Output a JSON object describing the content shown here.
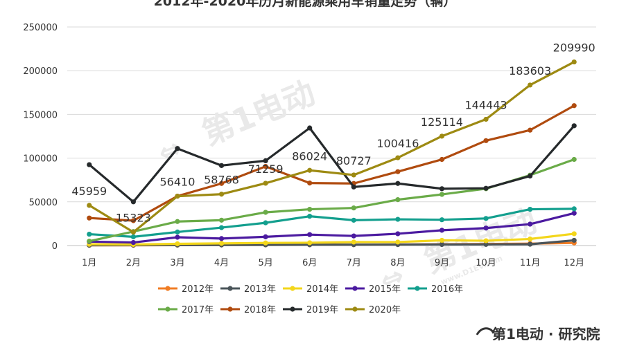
{
  "chart_data": {
    "type": "line",
    "title": "2012年-2020年历月新能源乘用车销量走势（辆）",
    "categories": [
      "1月",
      "2月",
      "3月",
      "4月",
      "5月",
      "6月",
      "7月",
      "8月",
      "9月",
      "10月",
      "11月",
      "12月"
    ],
    "ylim": [
      0,
      250000
    ],
    "yticks": [
      "0",
      "50000",
      "100000",
      "150000",
      "200000",
      "250000"
    ],
    "grid": true,
    "legend_position": "bottom",
    "series": [
      {
        "name": "2012年",
        "color": "#f07c24",
        "values": [
          300,
          300,
          500,
          700,
          800,
          900,
          1000,
          1200,
          1500,
          1800,
          2200,
          3000
        ]
      },
      {
        "name": "2013年",
        "color": "#4a5459",
        "values": [
          400,
          500,
          600,
          700,
          800,
          900,
          1000,
          1100,
          1200,
          1300,
          1500,
          6000
        ]
      },
      {
        "name": "2014年",
        "color": "#f3d61b",
        "values": [
          1500,
          1200,
          2000,
          2500,
          3000,
          3200,
          4000,
          4000,
          6000,
          5500,
          7500,
          13500
        ]
      },
      {
        "name": "2015年",
        "color": "#4b1aa0",
        "values": [
          4500,
          3500,
          9500,
          8000,
          10000,
          12500,
          11000,
          13500,
          17500,
          20000,
          24500,
          37000
        ]
      },
      {
        "name": "2016年",
        "color": "#139f8e",
        "values": [
          13000,
          10000,
          15500,
          20500,
          26000,
          33500,
          29000,
          30000,
          29500,
          31000,
          41500,
          42000
        ]
      },
      {
        "name": "2017年",
        "color": "#6aab48",
        "values": [
          5000,
          16000,
          27500,
          29000,
          38000,
          41500,
          43000,
          52500,
          58500,
          65000,
          80500,
          98500
        ]
      },
      {
        "name": "2018年",
        "color": "#b04b0f",
        "values": [
          31500,
          28500,
          56500,
          71000,
          90500,
          71500,
          71000,
          84500,
          98500,
          120000,
          132000,
          160000
        ]
      },
      {
        "name": "2019年",
        "color": "#25292b",
        "values": [
          92500,
          50000,
          111000,
          91500,
          97000,
          134500,
          67000,
          71000,
          65000,
          65500,
          79500,
          137000
        ]
      },
      {
        "name": "2020年",
        "color": "#9d8a12",
        "values": [
          45959,
          15323,
          56410,
          58768,
          71259,
          86024,
          80727,
          100416,
          125114,
          144443,
          183603,
          209990
        ]
      }
    ],
    "data_labels": {
      "series": "2020年",
      "values": [
        "45959",
        "15323",
        "56410",
        "58768",
        "71259",
        "86024",
        "80727",
        "100416",
        "125114",
        "144443",
        "183603",
        "209990"
      ]
    }
  },
  "watermark": {
    "text": "第1电动",
    "url_text": "www.D1EV.com"
  },
  "branding": {
    "left": "第1电动",
    "dot": "·",
    "right": "研究院"
  }
}
